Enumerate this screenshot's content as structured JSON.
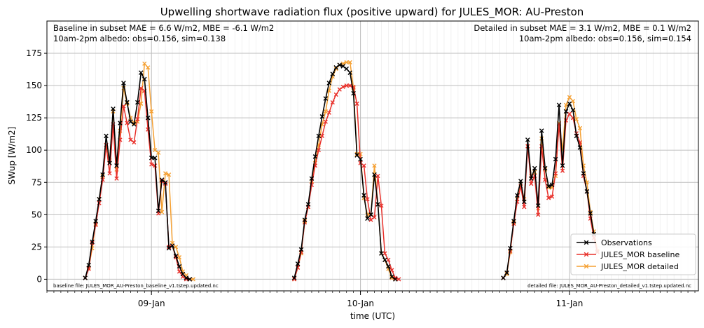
{
  "chart_data": {
    "type": "line",
    "title": "Upwelling shortwave radiation flux (positive upward) for JULES_MOR: AU-Preston",
    "xlabel": "time (UTC)",
    "ylabel": "SWup [W/m2]",
    "ylim": [
      -9,
      200
    ],
    "yticks": [
      0,
      25,
      50,
      75,
      100,
      125,
      150,
      175
    ],
    "xlim_hours": [
      -3,
      90.5
    ],
    "xticks": [
      {
        "label": "09-Jan",
        "hour": 12
      },
      {
        "label": "10-Jan",
        "hour": 42
      },
      {
        "label": "11-Jan",
        "hour": 72
      }
    ],
    "grid": true,
    "legend_position": "lower right",
    "annotations": {
      "baseline_metrics": "Baseline in subset MAE = 6.6 W/m2, MBE = -6.1 W/m2",
      "baseline_albedo": "10am-2pm albedo: obs=0.156, sim=0.138",
      "detailed_metrics": "Detailed in subset MAE = 3.1 W/m2, MBE = 0.1 W/m2",
      "detailed_albedo": "10am-2pm albedo: obs=0.156, sim=0.154",
      "baseline_file": "baseline file: JULES_MOR_AU-Preston_baseline_v1.tstep.updated.nc",
      "detailed_file": "detailed file: JULES_MOR_AU-Preston_detailed_v1.tstep.updated.nc"
    },
    "time_step_hours": 0.5,
    "series": [
      {
        "name": "JULES_MOR detailed",
        "color": "#f5a032",
        "segments": [
          {
            "start_hour": 2.5,
            "values": [
              1,
              9,
              24,
              43,
              62,
              80,
              104,
              92,
              130,
              85,
              115,
              148,
              136,
              125,
              121,
              122,
              136,
              167,
              164,
              130,
              100,
              98,
              52,
              82,
              81,
              28,
              25,
              17,
              6,
              3,
              0,
              0
            ]
          },
          {
            "start_hour": 32.5,
            "values": [
              0,
              9,
              20,
              45,
              56,
              76,
              90,
              104,
              120,
              130,
              146,
              157,
              163,
              166,
              167,
              168,
              168,
              148,
              97,
              97,
              63,
              50,
              50,
              88,
              58,
              20,
              15,
              8,
              1,
              0
            ]
          },
          {
            "start_hour": 62.5,
            "values": [
              1,
              4,
              21,
              44,
              62,
              74,
              62,
              103,
              80,
              83,
              55,
              109,
              85,
              71,
              71,
              80,
              121,
              100,
              135,
              141,
              138,
              124,
              117,
              88,
              75,
              52,
              37,
              22
            ]
          }
        ]
      },
      {
        "name": "JULES_MOR baseline",
        "color": "#e8302a",
        "segments": [
          {
            "start_hour": 2.5,
            "values": [
              1,
              8,
              28,
              42,
              59,
              77,
              104,
              82,
              120,
              78,
              108,
              134,
              121,
              108,
              106,
              124,
              148,
              146,
              116,
              89,
              88,
              51,
              76,
              74,
              25,
              26,
              17,
              6,
              2,
              0,
              0
            ]
          },
          {
            "start_hour": 32.5,
            "values": [
              0,
              9,
              21,
              44,
              56,
              73,
              88,
              100,
              111,
              122,
              129,
              137,
              143,
              147,
              149,
              150,
              150,
              149,
              136,
              90,
              88,
              62,
              46,
              48,
              80,
              57,
              20,
              15,
              7,
              1,
              0
            ]
          },
          {
            "start_hour": 62.5,
            "values": [
              1,
              5,
              22,
              43,
              60,
              72,
              56,
              103,
              74,
              80,
              50,
              103,
              77,
              63,
              64,
              82,
              120,
              84,
              123,
              128,
              125,
              113,
              106,
              80,
              68,
              47,
              32,
              21
            ]
          }
        ]
      },
      {
        "name": "Observations",
        "color": "#000000",
        "segments": [
          {
            "start_hour": 2.5,
            "values": [
              1,
              11,
              29,
              45,
              62,
              81,
              111,
              90,
              132,
              88,
              121,
              152,
              137,
              122,
              120,
              137,
              160,
              155,
              125,
              94,
              94,
              53,
              77,
              75,
              24,
              26,
              18,
              10,
              4,
              1,
              0
            ]
          },
          {
            "start_hour": 32.5,
            "values": [
              1,
              12,
              23,
              46,
              58,
              78,
              95,
              111,
              126,
              140,
              152,
              159,
              164,
              166,
              165,
              163,
              160,
              144,
              96,
              93,
              65,
              47,
              50,
              81,
              58,
              20,
              15,
              10,
              2,
              0
            ]
          },
          {
            "start_hour": 62.5,
            "values": [
              1,
              5,
              24,
              45,
              65,
              76,
              60,
              108,
              78,
              86,
              57,
              115,
              86,
              72,
              73,
              93,
              135,
              88,
              130,
              136,
              131,
              111,
              102,
              82,
              68,
              51,
              35
            ]
          }
        ]
      }
    ],
    "legend": [
      "Observations",
      "JULES_MOR baseline",
      "JULES_MOR detailed"
    ]
  }
}
